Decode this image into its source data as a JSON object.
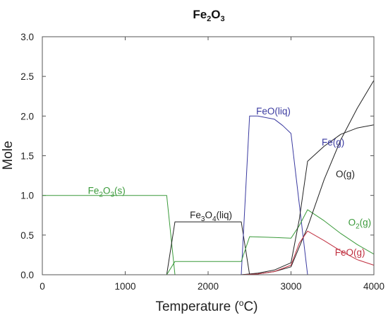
{
  "chart_data": {
    "type": "line",
    "title": {
      "main": "Fe",
      "sub1": "2",
      "mid": "O",
      "sub2": "3"
    },
    "xlabel": {
      "pre": "Temperature (",
      "sup": "o",
      "post": "C)"
    },
    "ylabel": "Mole",
    "xlim": [
      0,
      4000
    ],
    "ylim": [
      0,
      3
    ],
    "xticks": [
      0,
      1000,
      2000,
      3000,
      4000
    ],
    "xtick_labels": [
      "0",
      "1000",
      "2000",
      "3000",
      "4000"
    ],
    "yticks": [
      0,
      0.5,
      1,
      1.5,
      2,
      2.5,
      3
    ],
    "ytick_labels": [
      "0.0",
      "0.5",
      "1.0",
      "1.5",
      "2.0",
      "2.5",
      "3.0"
    ],
    "grid": false,
    "legend": "none",
    "series": [
      {
        "name": "Fe2O3(s)",
        "color": "#3a9a3a",
        "x": [
          0,
          1500,
          1600
        ],
        "y": [
          1.0,
          1.0,
          0.0
        ]
      },
      {
        "name": "Fe3O4(liq)",
        "color": "#222222",
        "x": [
          1500,
          1600,
          2400,
          2500
        ],
        "y": [
          0.0,
          0.667,
          0.667,
          0.0
        ]
      },
      {
        "name": "FeO(liq)",
        "color": "#3a3aa0",
        "x": [
          2400,
          2500,
          2600,
          2800,
          2900,
          3000,
          3200
        ],
        "y": [
          0.0,
          2.0,
          2.0,
          1.96,
          1.88,
          1.78,
          0.0
        ]
      },
      {
        "name": "O2(g)",
        "color": "#3a9a3a",
        "x": [
          1500,
          1600,
          2400,
          2500,
          2800,
          3000,
          3100,
          3200,
          3400,
          3600,
          3800,
          4000
        ],
        "y": [
          0.0,
          0.167,
          0.167,
          0.48,
          0.47,
          0.46,
          0.62,
          0.82,
          0.68,
          0.52,
          0.38,
          0.26
        ]
      },
      {
        "name": "Fe(g)",
        "color": "#222222",
        "x": [
          2400,
          2600,
          2800,
          3000,
          3100,
          3200,
          3400,
          3600,
          3800,
          4000
        ],
        "y": [
          0.0,
          0.02,
          0.06,
          0.15,
          0.7,
          1.43,
          1.62,
          1.77,
          1.85,
          1.89
        ]
      },
      {
        "name": "O(g)",
        "color": "#222222",
        "x": [
          2400,
          2600,
          2800,
          3000,
          3200,
          3400,
          3600,
          3800,
          4000
        ],
        "y": [
          0.0,
          0.01,
          0.04,
          0.1,
          0.6,
          1.2,
          1.7,
          2.1,
          2.45
        ]
      },
      {
        "name": "FeO(g)",
        "color": "#c03040",
        "x": [
          2400,
          2600,
          2800,
          3000,
          3100,
          3200,
          3400,
          3600,
          3800,
          4000
        ],
        "y": [
          0.0,
          0.01,
          0.04,
          0.12,
          0.4,
          0.55,
          0.43,
          0.3,
          0.19,
          0.12
        ]
      }
    ],
    "annotations": [
      {
        "id": "fe2o3s",
        "parts": [
          {
            "t": "Fe"
          },
          {
            "t": "2",
            "sub": true
          },
          {
            "t": "O"
          },
          {
            "t": "3",
            "sub": true
          },
          {
            "t": "(s)"
          }
        ],
        "x": 550,
        "y": 1.02,
        "color": "#3a9a3a"
      },
      {
        "id": "fe3o4liq",
        "parts": [
          {
            "t": "Fe"
          },
          {
            "t": "3",
            "sub": true
          },
          {
            "t": "O"
          },
          {
            "t": "4",
            "sub": true
          },
          {
            "t": "(liq)"
          }
        ],
        "x": 1780,
        "y": 0.71,
        "color": "#222222"
      },
      {
        "id": "feoliq",
        "parts": [
          {
            "t": "FeO(liq)"
          }
        ],
        "x": 2580,
        "y": 2.02,
        "color": "#3a3aa0"
      },
      {
        "id": "feg",
        "parts": [
          {
            "t": "Fe(g)"
          }
        ],
        "x": 3370,
        "y": 1.63,
        "color": "#3a3aa0"
      },
      {
        "id": "og",
        "parts": [
          {
            "t": "O(g)"
          }
        ],
        "x": 3540,
        "y": 1.23,
        "color": "#222222"
      },
      {
        "id": "o2g",
        "parts": [
          {
            "t": "O"
          },
          {
            "t": "2",
            "sub": true
          },
          {
            "t": "(g)"
          }
        ],
        "x": 3690,
        "y": 0.62,
        "color": "#3a9a3a"
      },
      {
        "id": "feog",
        "parts": [
          {
            "t": "FeO(g)"
          }
        ],
        "x": 3530,
        "y": 0.24,
        "color": "#c03040"
      }
    ]
  }
}
